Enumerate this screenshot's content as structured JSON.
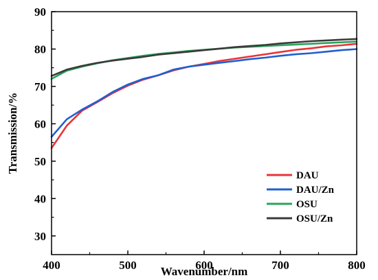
{
  "chart_data": {
    "type": "line",
    "title": "",
    "xlabel": "Wavenumber/nm",
    "ylabel": "Transmission/%",
    "xlim": [
      400,
      800
    ],
    "ylim": [
      25,
      90
    ],
    "xticks": [
      400,
      500,
      600,
      700,
      800
    ],
    "yticks": [
      30,
      40,
      50,
      60,
      70,
      80,
      90
    ],
    "grid": false,
    "legend_position": "bottom-right",
    "x": [
      400,
      420,
      440,
      460,
      480,
      500,
      520,
      540,
      560,
      580,
      600,
      620,
      640,
      660,
      680,
      700,
      720,
      740,
      760,
      780,
      800
    ],
    "series": [
      {
        "name": "DAU",
        "color": "#e8333a",
        "values": [
          53.5,
          59.5,
          63.5,
          65.8,
          68.2,
          70.2,
          71.8,
          73.0,
          74.3,
          75.3,
          76.0,
          76.8,
          77.4,
          78.0,
          78.6,
          79.2,
          79.8,
          80.2,
          80.7,
          81.0,
          81.4
        ]
      },
      {
        "name": "DAU/Zn",
        "color": "#1f5fcf",
        "values": [
          56.5,
          61.2,
          63.8,
          66.0,
          68.5,
          70.5,
          72.0,
          73.0,
          74.5,
          75.3,
          75.8,
          76.3,
          76.8,
          77.3,
          77.7,
          78.2,
          78.6,
          78.9,
          79.3,
          79.7,
          80.0
        ]
      },
      {
        "name": "OSU",
        "color": "#2aa35a",
        "values": [
          72.0,
          74.2,
          75.3,
          76.2,
          77.0,
          77.6,
          78.2,
          78.7,
          79.1,
          79.5,
          79.8,
          80.1,
          80.4,
          80.6,
          80.8,
          81.0,
          81.2,
          81.4,
          81.6,
          81.8,
          82.0
        ]
      },
      {
        "name": "OSU/Zn",
        "color": "#3a3a3a",
        "values": [
          72.8,
          74.5,
          75.5,
          76.3,
          76.9,
          77.4,
          77.9,
          78.5,
          78.9,
          79.3,
          79.7,
          80.1,
          80.5,
          80.8,
          81.1,
          81.5,
          81.8,
          82.1,
          82.3,
          82.5,
          82.7
        ]
      }
    ]
  }
}
